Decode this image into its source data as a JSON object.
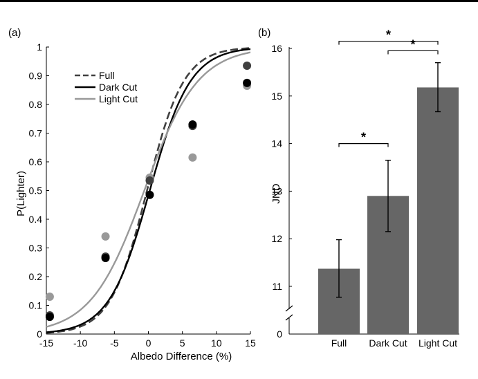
{
  "chart_data": [
    {
      "type": "line",
      "panel_label": "(a)",
      "xlabel": "Albedo Difference (%)",
      "ylabel": "P(Lighter)",
      "xlim": [
        -15,
        15
      ],
      "ylim": [
        0,
        1
      ],
      "xticks": [
        -15,
        -10,
        -5,
        0,
        5,
        10,
        15
      ],
      "xtick_labels": [
        "-15",
        "-10",
        "-5",
        "0",
        "5",
        "10",
        "15"
      ],
      "yticks": [
        0,
        0.1,
        0.2,
        0.3,
        0.4,
        0.5,
        0.6,
        0.7,
        0.8,
        0.9,
        1
      ],
      "ytick_labels": [
        "0",
        "0.1",
        "0.2",
        "0.3",
        "0.4",
        "0.5",
        "0.6",
        "0.7",
        "0.8",
        "0.9",
        "1"
      ],
      "legend_position": "top-left",
      "series": [
        {
          "name": "Full",
          "style": "dashed",
          "color": "#404040",
          "points": [
            [
              -14.5,
              0.065
            ],
            [
              -6.3,
              0.27
            ],
            [
              0.2,
              0.535
            ],
            [
              6.5,
              0.725
            ],
            [
              14.5,
              0.935
            ]
          ],
          "fit": {
            "mu": -0.2,
            "s": 4.6
          }
        },
        {
          "name": "Dark Cut",
          "style": "solid",
          "color": "#000000",
          "points": [
            [
              -14.5,
              0.06
            ],
            [
              -6.3,
              0.265
            ],
            [
              0.2,
              0.485
            ],
            [
              6.5,
              0.73
            ],
            [
              14.5,
              0.875
            ]
          ],
          "fit": {
            "mu": 0.2,
            "s": 5.1
          }
        },
        {
          "name": "Light Cut",
          "style": "solid",
          "color": "#999999",
          "points": [
            [
              -14.5,
              0.13
            ],
            [
              -6.3,
              0.34
            ],
            [
              0.2,
              0.545
            ],
            [
              6.5,
              0.615
            ],
            [
              14.5,
              0.865
            ]
          ],
          "fit": {
            "mu": -0.6,
            "s": 6.7
          }
        }
      ]
    },
    {
      "type": "bar",
      "panel_label": "(b)",
      "ylabel": "JND",
      "categories": [
        "Full",
        "Dark Cut",
        "Light Cut"
      ],
      "values": [
        11.37,
        12.9,
        15.18
      ],
      "errors": [
        [
          10.77,
          11.98
        ],
        [
          12.15,
          13.65
        ],
        [
          14.67,
          15.7
        ]
      ],
      "bar_color": "#666666",
      "ylim": [
        11,
        16
      ],
      "axis_break": true,
      "yticks": [
        11,
        12,
        13,
        14,
        15,
        16
      ],
      "ytick_labels": [
        "11",
        "12",
        "13",
        "14",
        "15",
        "16"
      ],
      "bottom_tick_label": "0",
      "significance": [
        {
          "from": 0,
          "to": 2,
          "y": 16.15,
          "label": "*"
        },
        {
          "from": 1,
          "to": 2,
          "y": 15.95,
          "label": "*"
        },
        {
          "from": 0,
          "to": 1,
          "y": 14.0,
          "label": "*"
        }
      ]
    }
  ]
}
